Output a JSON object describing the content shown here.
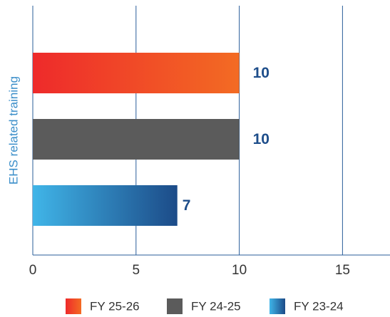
{
  "chart_data": {
    "type": "bar",
    "orientation": "horizontal",
    "y_label": "EHS related training",
    "categories": [
      "EHS related training"
    ],
    "series": [
      {
        "name": "FY 25-26",
        "color": [
          "#ee2a2b",
          "#f36b23"
        ],
        "values": [
          10
        ]
      },
      {
        "name": "FY 24-25",
        "color": [
          "#5b5b5b",
          "#5b5b5b"
        ],
        "values": [
          10
        ]
      },
      {
        "name": "FY 23-24",
        "color": [
          "#40b5e8",
          "#1c4b88"
        ],
        "values": [
          7
        ]
      }
    ],
    "xlim": [
      0,
      17.3
    ],
    "xticks": [
      0,
      5,
      10,
      15
    ],
    "grid": true
  }
}
